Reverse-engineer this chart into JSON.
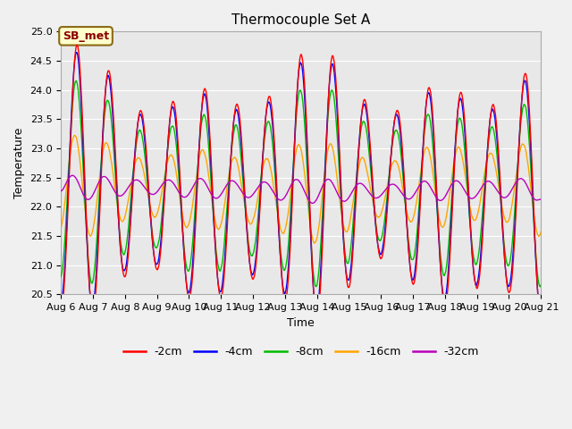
{
  "title": "Thermocouple Set A",
  "xlabel": "Time",
  "ylabel": "Temperature",
  "ylim": [
    20.5,
    25.0
  ],
  "day_start": 6,
  "day_end": 21,
  "annotation_text": "SB_met",
  "colors": {
    "-2cm": "#FF0000",
    "-4cm": "#0000FF",
    "-8cm": "#00BB00",
    "-16cm": "#FFA500",
    "-32cm": "#BB00BB"
  },
  "legend_labels": [
    "-2cm",
    "-4cm",
    "-8cm",
    "-16cm",
    "-32cm"
  ],
  "fig_facecolor": "#F0F0F0",
  "ax_facecolor": "#E8E8E8",
  "grid_color": "#FFFFFF",
  "x_tick_days": [
    6,
    7,
    8,
    9,
    10,
    11,
    12,
    13,
    14,
    15,
    16,
    17,
    18,
    19,
    20,
    21
  ],
  "n_points": 1500,
  "seed": 12345,
  "base_mean": 22.3,
  "amp_2": 1.75,
  "amp_4": 1.65,
  "amp_8": 1.3,
  "amp_16": 0.65,
  "amp_32": 0.18,
  "phase_lag_4": 0.08,
  "phase_lag_8": 0.18,
  "phase_lag_16": 0.45,
  "phase_lag_32": 0.9,
  "slow_trend_amp": 0.12,
  "slow_trend_period": 8.0,
  "linewidth": 1.0,
  "title_fontsize": 11,
  "label_fontsize": 9,
  "tick_fontsize": 8,
  "legend_fontsize": 9
}
